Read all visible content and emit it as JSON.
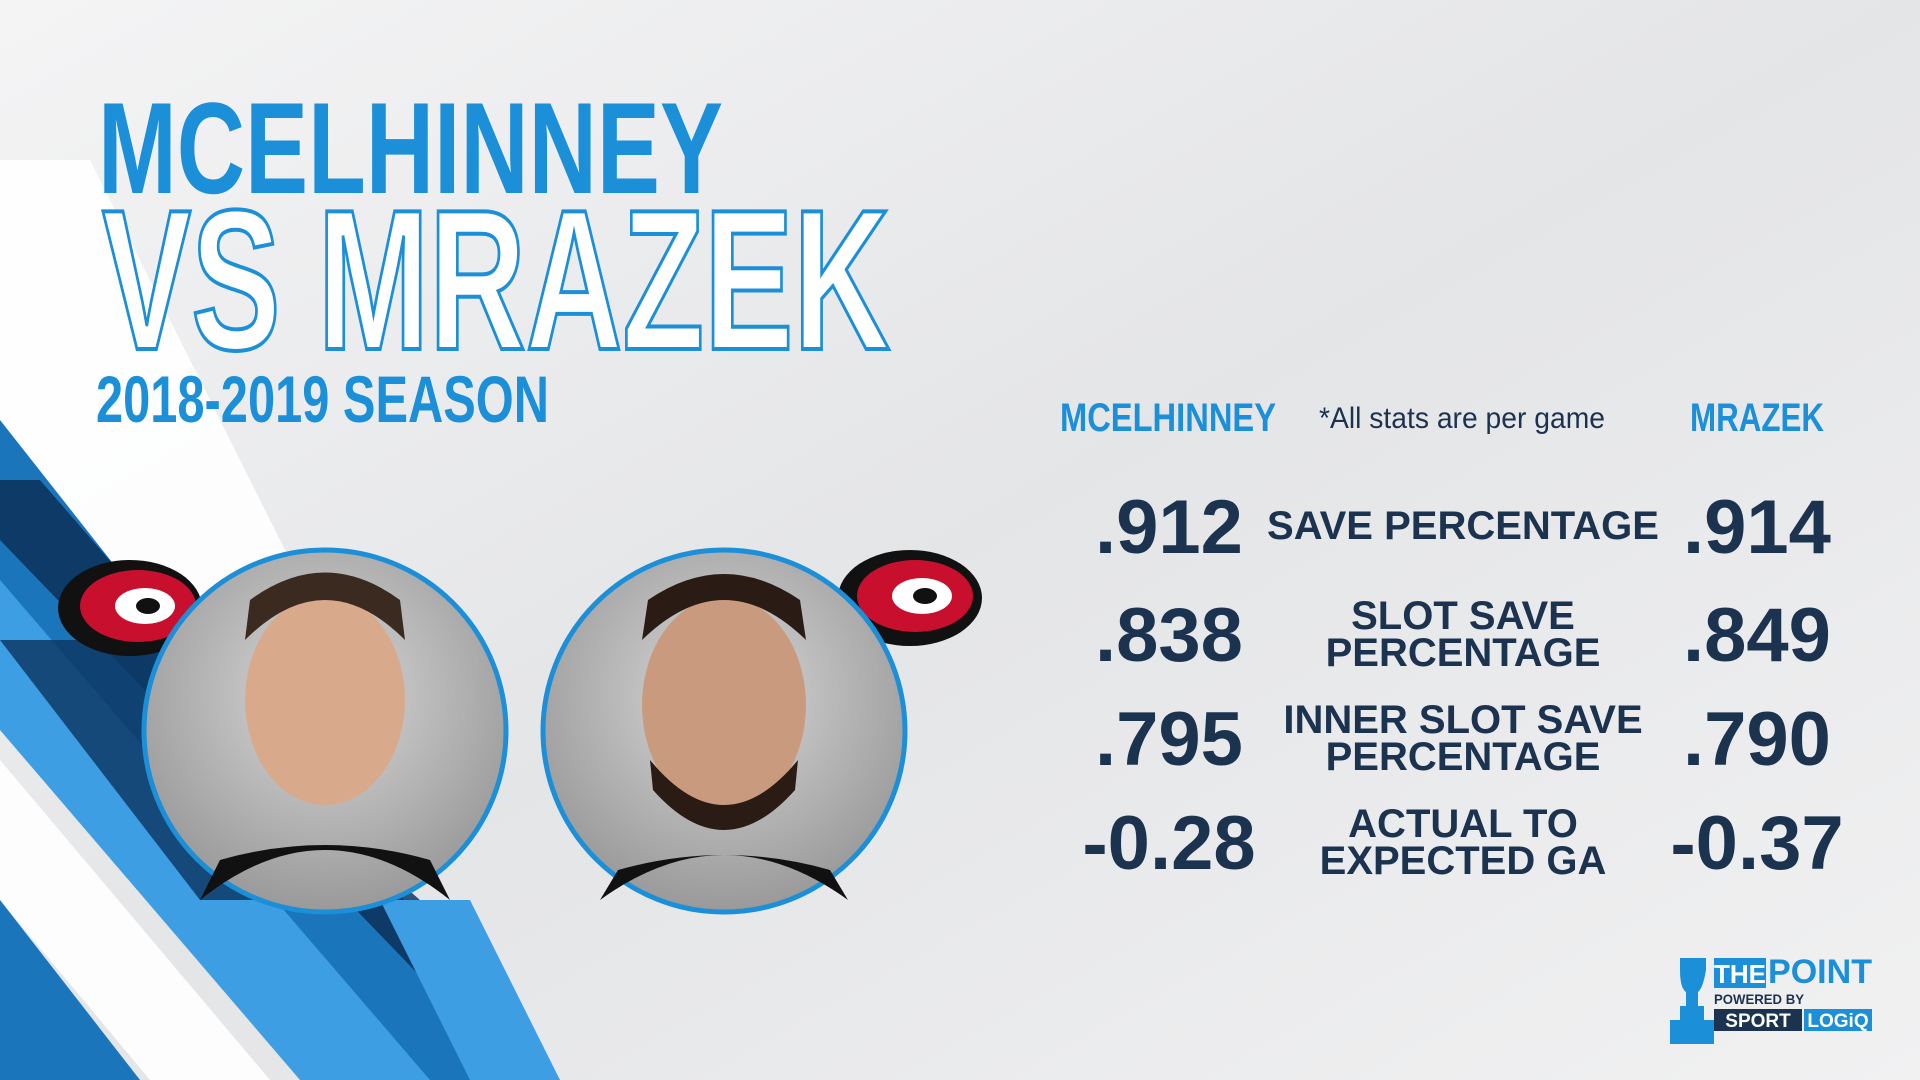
{
  "title": {
    "line1": "MCELHINNEY",
    "line2": "VS MRAZEK",
    "season": "2018-2019 SEASON"
  },
  "table": {
    "left_header": "MCELHINNEY",
    "note": "*All stats are per game",
    "right_header": "MRAZEK",
    "rows": [
      {
        "label": [
          "SAVE PERCENTAGE"
        ],
        "left": ".912",
        "right": ".914"
      },
      {
        "label": [
          "SLOT SAVE",
          "PERCENTAGE"
        ],
        "left": ".838",
        "right": ".849"
      },
      {
        "label": [
          "INNER SLOT SAVE",
          "PERCENTAGE"
        ],
        "left": ".795",
        "right": ".790"
      },
      {
        "label": [
          "ACTUAL TO",
          "EXPECTED GA"
        ],
        "left": "-0.28",
        "right": "-0.37"
      }
    ]
  },
  "logo": {
    "the": "THE",
    "point": "POINT",
    "powered": "POWERED BY",
    "sport": "SPORT",
    "logiq": "LOGiQ"
  }
}
